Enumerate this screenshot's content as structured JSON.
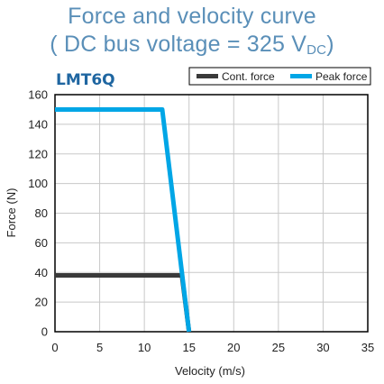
{
  "title": {
    "line1": "Force and velocity curve",
    "line2_prefix": "( DC bus voltage = 325 V",
    "line2_sub": "DC",
    "line2_suffix": ")"
  },
  "chart_data": {
    "type": "line",
    "model_label": "LMT6Q",
    "xlabel": "Velocity (m/s)",
    "ylabel": "Force (N)",
    "xlim": [
      0,
      35
    ],
    "ylim": [
      0,
      160
    ],
    "xticks": [
      0,
      5,
      10,
      15,
      20,
      25,
      30,
      35
    ],
    "yticks": [
      0,
      20,
      40,
      60,
      80,
      100,
      120,
      140,
      160
    ],
    "grid": true,
    "legend_position": "top-right",
    "series": [
      {
        "name": "Cont. force",
        "color": "#3a3a3a",
        "x": [
          0,
          14.2,
          15.0
        ],
        "y": [
          38,
          38,
          0
        ]
      },
      {
        "name": "Peak force",
        "color": "#00a6e6",
        "x": [
          0,
          12.0,
          15.0
        ],
        "y": [
          150,
          150,
          0
        ]
      }
    ]
  },
  "colors": {
    "title": "#5a8fb8",
    "model": "#1f66a1",
    "grid": "#c8c8c8",
    "axis": "#000000"
  }
}
